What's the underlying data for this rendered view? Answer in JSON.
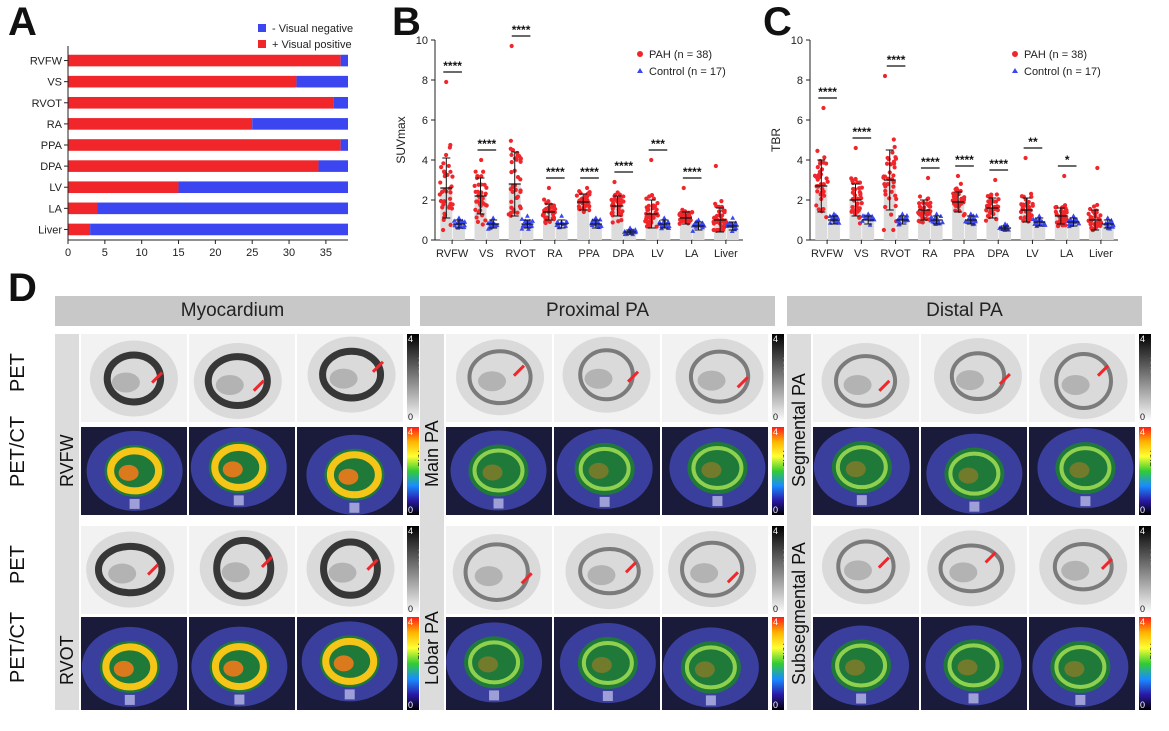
{
  "panel_labels": {
    "a": "A",
    "b": "B",
    "c": "C",
    "d": "D"
  },
  "colors": {
    "red": "#f0262b",
    "blue": "#3b46f0",
    "gray_bar": "#d9d9d9"
  },
  "chart_data": [
    {
      "id": "A",
      "type": "bar",
      "orientation": "horizontal-stacked",
      "categories": [
        "RVFW",
        "VS",
        "RVOT",
        "RA",
        "PPA",
        "DPA",
        "LV",
        "LA",
        "Liver"
      ],
      "series": [
        {
          "name": "+ Visual positive",
          "color": "#f0262b",
          "values": [
            37,
            31,
            36,
            25,
            37,
            34,
            15,
            4,
            3
          ]
        },
        {
          "name": "- Visual negative",
          "color": "#3b46f0",
          "values": [
            1,
            7,
            2,
            13,
            1,
            4,
            23,
            34,
            35
          ]
        }
      ],
      "xlim": [
        0,
        38
      ],
      "xticks": [
        "0",
        "5",
        "10",
        "15",
        "20",
        "25",
        "30",
        "35"
      ],
      "legend": [
        "- Visual negative",
        "+ Visual positive"
      ]
    },
    {
      "id": "B",
      "type": "scatter",
      "ylabel": "SUVmax",
      "ylim": [
        0,
        10
      ],
      "yticks": [
        "0",
        "2",
        "4",
        "6",
        "8",
        "10"
      ],
      "categories": [
        "RVFW",
        "VS",
        "RVOT",
        "RA",
        "PPA",
        "DPA",
        "LV",
        "LA",
        "Liver"
      ],
      "series": [
        {
          "name": "PAH",
          "n": "38",
          "color": "#f0262b",
          "means": [
            2.6,
            2.2,
            2.8,
            1.4,
            1.9,
            1.7,
            1.3,
            1.1,
            1.0
          ],
          "sds": [
            1.5,
            0.9,
            1.6,
            0.4,
            0.4,
            0.5,
            0.7,
            0.3,
            0.6
          ],
          "max": [
            7.9,
            4.0,
            9.7,
            2.6,
            2.6,
            2.9,
            4.0,
            2.6,
            3.7
          ]
        },
        {
          "name": "Control",
          "n": "17",
          "color": "#3b46f0",
          "means": [
            0.8,
            0.8,
            0.8,
            0.8,
            0.8,
            0.4,
            0.8,
            0.7,
            0.7
          ],
          "sds": [
            0.2,
            0.2,
            0.2,
            0.2,
            0.2,
            0.1,
            0.2,
            0.2,
            0.2
          ],
          "max": [
            1.1,
            1.1,
            1.2,
            1.2,
            1.1,
            0.6,
            1.1,
            1.0,
            1.1
          ]
        }
      ],
      "significance": [
        "****",
        "****",
        "****",
        "****",
        "****",
        "****",
        "***",
        "****",
        ""
      ],
      "legend": [
        "PAH (n = 38)",
        "Control (n = 17)"
      ]
    },
    {
      "id": "C",
      "type": "scatter",
      "ylabel": "TBR",
      "ylim": [
        0,
        10
      ],
      "yticks": [
        "0",
        "2",
        "4",
        "6",
        "8",
        "10"
      ],
      "categories": [
        "RVFW",
        "VS",
        "RVOT",
        "RA",
        "PPA",
        "DPA",
        "LV",
        "LA",
        "Liver"
      ],
      "series": [
        {
          "name": "PAH",
          "n": "38",
          "color": "#f0262b",
          "means": [
            2.7,
            2.0,
            3.0,
            1.5,
            1.9,
            1.6,
            1.5,
            1.2,
            1.0
          ],
          "sds": [
            1.3,
            0.8,
            1.5,
            0.5,
            0.5,
            0.5,
            0.6,
            0.4,
            0.5
          ],
          "max": [
            6.6,
            4.6,
            8.2,
            3.1,
            3.2,
            3.0,
            4.1,
            3.2,
            3.6
          ]
        },
        {
          "name": "Control",
          "n": "17",
          "color": "#3b46f0",
          "means": [
            1.0,
            1.0,
            1.0,
            1.0,
            1.0,
            0.6,
            0.9,
            0.9,
            0.8
          ],
          "sds": [
            0.2,
            0.2,
            0.2,
            0.2,
            0.2,
            0.1,
            0.2,
            0.2,
            0.2
          ],
          "max": [
            1.3,
            1.3,
            1.3,
            1.3,
            1.3,
            0.8,
            1.2,
            1.2,
            1.1
          ]
        }
      ],
      "significance": [
        "****",
        "****",
        "****",
        "****",
        "****",
        "****",
        "**",
        "*",
        ""
      ],
      "legend": [
        "PAH (n = 38)",
        "Control (n = 17)"
      ]
    }
  ],
  "panel_d": {
    "columns": [
      "Myocardium",
      "Proximal PA",
      "Distal PA"
    ],
    "row_labels": [
      "PET",
      "PET/CT",
      "PET",
      "PET/CT"
    ],
    "region_labels": [
      [
        "RVFW",
        "RVOT"
      ],
      [
        "Main PA",
        "Lobar PA"
      ],
      [
        "Segmental PA",
        "Subsegmental PA"
      ]
    ],
    "colorbar": {
      "label": "SUV",
      "max": "4",
      "min": "0"
    }
  }
}
